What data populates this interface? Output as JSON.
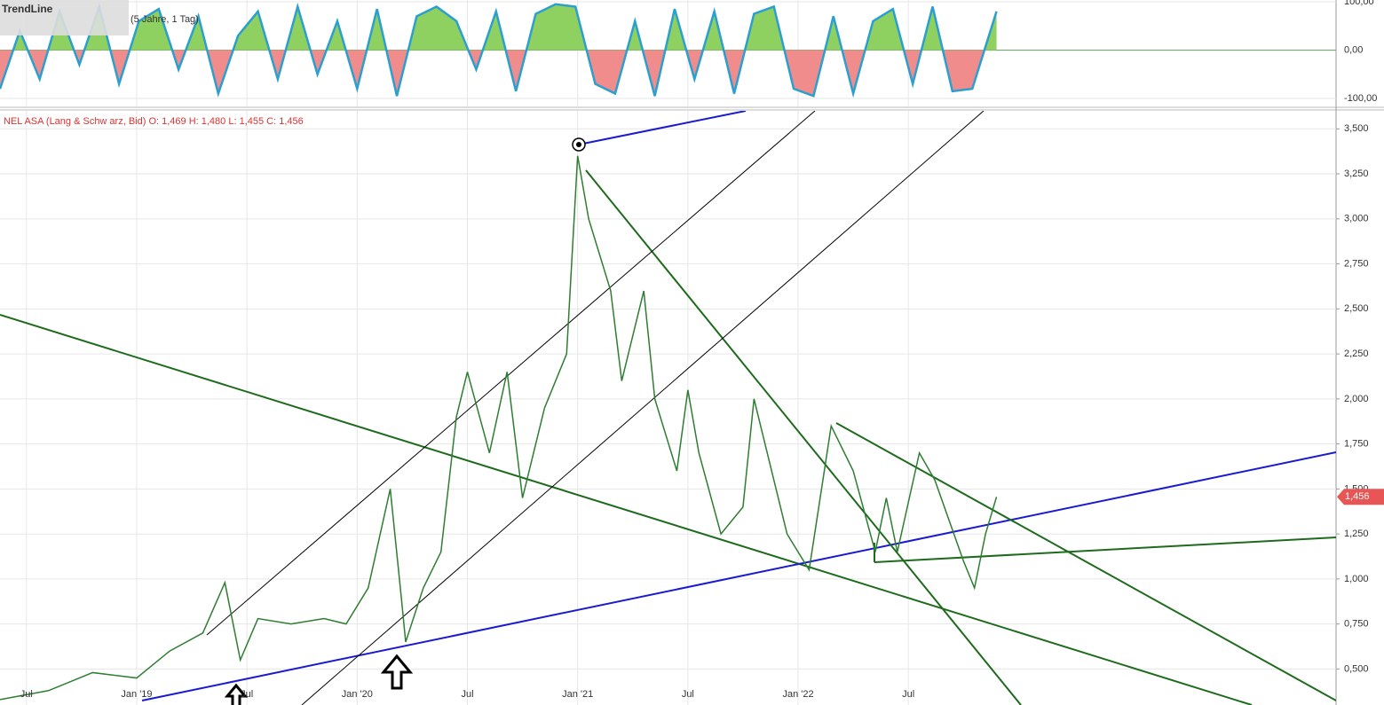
{
  "header": {
    "title": "TrendLine",
    "period": "(5 Jahre, 1 Tag)"
  },
  "chart_data": [
    {
      "type": "line",
      "legend_text": "NEL ASA (Lang & Schw arz, Bid)  O: 1,469  H: 1,480  L: 1,455  C: 1,456",
      "last_label": "1,456",
      "color": "#2e7d32",
      "x": [
        2018.38,
        2018.6,
        2018.8,
        2019.0,
        2019.15,
        2019.3,
        2019.4,
        2019.47,
        2019.55,
        2019.7,
        2019.85,
        2019.95,
        2020.05,
        2020.15,
        2020.2,
        2020.22,
        2020.3,
        2020.38,
        2020.45,
        2020.5,
        2020.6,
        2020.68,
        2020.75,
        2020.85,
        2020.95,
        2021.0,
        2021.05,
        2021.15,
        2021.2,
        2021.3,
        2021.35,
        2021.45,
        2021.5,
        2021.55,
        2021.65,
        2021.75,
        2021.8,
        2021.88,
        2021.95,
        2022.05,
        2022.15,
        2022.25,
        2022.35,
        2022.4,
        2022.45,
        2022.55,
        2022.62,
        2022.75,
        2022.8,
        2022.85,
        2022.9
      ],
      "values": [
        0.33,
        0.38,
        0.48,
        0.45,
        0.6,
        0.7,
        0.98,
        0.55,
        0.78,
        0.75,
        0.78,
        0.75,
        0.95,
        1.5,
        0.9,
        0.65,
        0.95,
        1.15,
        1.9,
        2.15,
        1.7,
        2.15,
        1.45,
        1.95,
        2.25,
        3.35,
        3.0,
        2.6,
        2.1,
        2.6,
        2.0,
        1.6,
        2.05,
        1.7,
        1.25,
        1.4,
        2.0,
        1.6,
        1.25,
        1.05,
        1.85,
        1.6,
        1.15,
        1.45,
        1.15,
        1.7,
        1.55,
        1.1,
        0.95,
        1.25,
        1.456
      ],
      "xlim": [
        2018.38,
        2024.44
      ],
      "xticks": [
        {
          "value": 2018.5,
          "label": "Jul"
        },
        {
          "value": 2019.0,
          "label": "Jan '19"
        },
        {
          "value": 2019.5,
          "label": "Jul"
        },
        {
          "value": 2020.0,
          "label": "Jan '20"
        },
        {
          "value": 2020.5,
          "label": "Jul"
        },
        {
          "value": 2021.0,
          "label": "Jan '21"
        },
        {
          "value": 2021.5,
          "label": "Jul"
        },
        {
          "value": 2022.0,
          "label": "Jan '22"
        },
        {
          "value": 2022.5,
          "label": "Jul"
        }
      ],
      "ylim": [
        0.3,
        3.6
      ],
      "yticks": [
        {
          "value": 0.5,
          "label": "0,500"
        },
        {
          "value": 0.75,
          "label": "0,750"
        },
        {
          "value": 1,
          "label": "1,000"
        },
        {
          "value": 1.25,
          "label": "1,250"
        },
        {
          "value": 1.5,
          "label": "1,500"
        },
        {
          "value": 1.75,
          "label": "1,750"
        },
        {
          "value": 2,
          "label": "2,000"
        },
        {
          "value": 2.25,
          "label": "2,250"
        },
        {
          "value": 2.5,
          "label": "2,500"
        },
        {
          "value": 2.75,
          "label": "2,750"
        },
        {
          "value": 3,
          "label": "3,000"
        },
        {
          "value": 3.25,
          "label": "3,250"
        },
        {
          "value": 3.5,
          "label": "3,500"
        }
      ],
      "grid": true
    },
    {
      "type": "area",
      "color": "#2a9fd0",
      "pos_color": "#8fd160",
      "neg_color": "#f08c8c",
      "x": [
        2018.38,
        2018.47,
        2018.56,
        2018.65,
        2018.74,
        2018.83,
        2018.92,
        2019.01,
        2019.1,
        2019.19,
        2019.28,
        2019.37,
        2019.46,
        2019.55,
        2019.64,
        2019.73,
        2019.82,
        2019.91,
        2020.0,
        2020.09,
        2020.18,
        2020.27,
        2020.36,
        2020.45,
        2020.54,
        2020.63,
        2020.72,
        2020.81,
        2020.9,
        2020.99,
        2021.08,
        2021.17,
        2021.26,
        2021.35,
        2021.44,
        2021.53,
        2021.62,
        2021.71,
        2021.8,
        2021.89,
        2021.98,
        2022.07,
        2022.16,
        2022.25,
        2022.34,
        2022.43,
        2022.52,
        2022.61,
        2022.7,
        2022.79,
        2022.9
      ],
      "values": [
        -80,
        40,
        -60,
        80,
        -30,
        90,
        -70,
        60,
        85,
        -40,
        70,
        -90,
        30,
        80,
        -60,
        90,
        -50,
        60,
        -80,
        85,
        -95,
        70,
        90,
        60,
        -40,
        80,
        -85,
        75,
        95,
        90,
        -70,
        -90,
        60,
        -95,
        85,
        -60,
        80,
        -90,
        75,
        90,
        -80,
        -95,
        70,
        -90,
        60,
        85,
        -70,
        90,
        -85,
        -80,
        80
      ],
      "ylim": [
        -100,
        100
      ],
      "yticks": [
        {
          "value": -100,
          "label": "-100,00"
        },
        {
          "value": 0,
          "label": "0,00"
        },
        {
          "value": 100,
          "label": "100,00"
        }
      ]
    }
  ]
}
